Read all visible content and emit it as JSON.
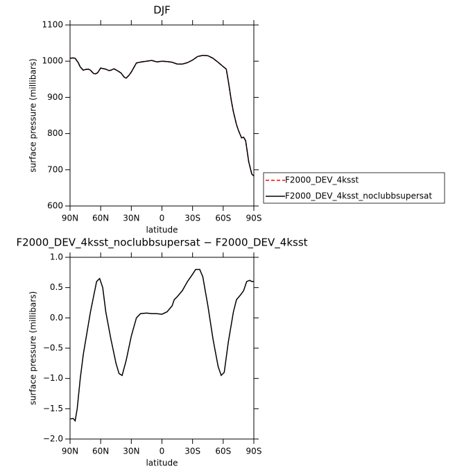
{
  "chart_data": [
    {
      "type": "line",
      "title": "DJF",
      "xlabel": "latitude",
      "ylabel": "surface pressure (millibars)",
      "x": [
        90,
        87,
        85,
        82,
        80,
        77,
        75,
        72,
        70,
        67,
        65,
        63,
        60,
        57,
        55,
        52,
        50,
        47,
        45,
        42,
        40,
        37,
        35,
        32,
        30,
        27,
        25,
        20,
        15,
        10,
        5,
        0,
        -5,
        -10,
        -15,
        -20,
        -25,
        -30,
        -35,
        -40,
        -45,
        -50,
        -55,
        -60,
        -63,
        -65,
        -68,
        -70,
        -73,
        -75,
        -78,
        -80,
        -82,
        -85,
        -88,
        -90
      ],
      "series": [
        {
          "name": "F2000_DEV_4ksst",
          "color": "#ff0000",
          "dash": true,
          "values": [
            1008,
            1009,
            1008,
            996,
            984,
            975,
            977,
            978,
            975,
            966,
            965,
            968,
            981,
            979,
            978,
            974,
            975,
            979,
            976,
            971,
            967,
            956,
            953,
            962,
            970,
            985,
            995,
            998,
            1000,
            1002,
            998,
            1000,
            999,
            997,
            992,
            992,
            996,
            1003,
            1013,
            1016,
            1015,
            1008,
            997,
            985,
            978,
            945,
            890,
            860,
            825,
            808,
            788,
            790,
            780,
            722,
            688,
            683
          ]
        },
        {
          "name": "F2000_DEV_4ksst_noclubbsupersat",
          "color": "#000000",
          "dash": false,
          "values": [
            1008,
            1009,
            1008,
            996,
            984,
            975,
            977,
            978,
            975,
            966,
            965,
            968,
            981,
            979,
            978,
            974,
            975,
            979,
            976,
            971,
            967,
            956,
            953,
            962,
            970,
            985,
            995,
            998,
            1000,
            1002,
            998,
            1000,
            999,
            997,
            992,
            992,
            996,
            1003,
            1013,
            1016,
            1015,
            1008,
            997,
            985,
            978,
            945,
            890,
            860,
            825,
            808,
            788,
            790,
            780,
            722,
            688,
            683
          ]
        }
      ],
      "xlim": [
        90,
        -90
      ],
      "xticks": [
        {
          "value": 90,
          "label": "90N"
        },
        {
          "value": 60,
          "label": "60N"
        },
        {
          "value": 30,
          "label": "30N"
        },
        0,
        {
          "value": -30,
          "label": "30S"
        },
        {
          "value": -60,
          "label": "60S"
        },
        {
          "value": -90,
          "label": "90S"
        }
      ],
      "ylim": [
        600,
        1100
      ],
      "yticks": [
        600,
        700,
        800,
        900,
        1000,
        1100
      ],
      "legend": "right"
    },
    {
      "type": "line",
      "title": "F2000_DEV_4ksst_noclubbsupersat − F2000_DEV_4ksst",
      "xlabel": "latitude",
      "ylabel": "surface pressure (millibars)",
      "x": [
        90,
        87,
        85,
        83,
        80,
        77,
        74,
        70,
        67,
        64,
        61,
        58,
        55,
        50,
        45,
        42,
        39,
        35,
        30,
        25,
        21,
        15,
        10,
        5,
        0,
        -5,
        -10,
        -12,
        -15,
        -20,
        -25,
        -30,
        -33,
        -37,
        -40,
        -45,
        -50,
        -55,
        -58,
        -61,
        -65,
        -70,
        -73,
        -77,
        -80,
        -83,
        -86,
        -88,
        -90
      ],
      "series": [
        {
          "name": "F2000_DEV_4ksst_noclubbsupersat − F2000_DEV_4ksst",
          "color": "#000000",
          "dash": false,
          "values": [
            -1.67,
            -1.66,
            -1.7,
            -1.5,
            -1.0,
            -0.6,
            -0.3,
            0.1,
            0.35,
            0.6,
            0.65,
            0.5,
            0.1,
            -0.35,
            -0.75,
            -0.92,
            -0.95,
            -0.7,
            -0.3,
            0.0,
            0.07,
            0.08,
            0.07,
            0.07,
            0.06,
            0.1,
            0.2,
            0.3,
            0.35,
            0.45,
            0.6,
            0.72,
            0.8,
            0.8,
            0.68,
            0.2,
            -0.35,
            -0.8,
            -0.95,
            -0.9,
            -0.4,
            0.1,
            0.3,
            0.38,
            0.45,
            0.6,
            0.62,
            0.6,
            0.6
          ]
        }
      ],
      "xlim": [
        90,
        -90
      ],
      "xticks": [
        {
          "value": 90,
          "label": "90N"
        },
        {
          "value": 60,
          "label": "60N"
        },
        {
          "value": 30,
          "label": "30N"
        },
        0,
        {
          "value": -30,
          "label": "30S"
        },
        {
          "value": -60,
          "label": "60S"
        },
        {
          "value": -90,
          "label": "90S"
        }
      ],
      "ylim": [
        -2,
        1
      ],
      "yticks": [
        {
          "value": -2,
          "label": "−2.0"
        },
        {
          "value": -1.5,
          "label": "−1.5"
        },
        {
          "value": -1,
          "label": "−1.0"
        },
        {
          "value": -0.5,
          "label": "−0.5"
        },
        {
          "value": 0,
          "label": "0.0"
        },
        0.5,
        {
          "value": 1,
          "label": "1.0"
        }
      ]
    }
  ]
}
